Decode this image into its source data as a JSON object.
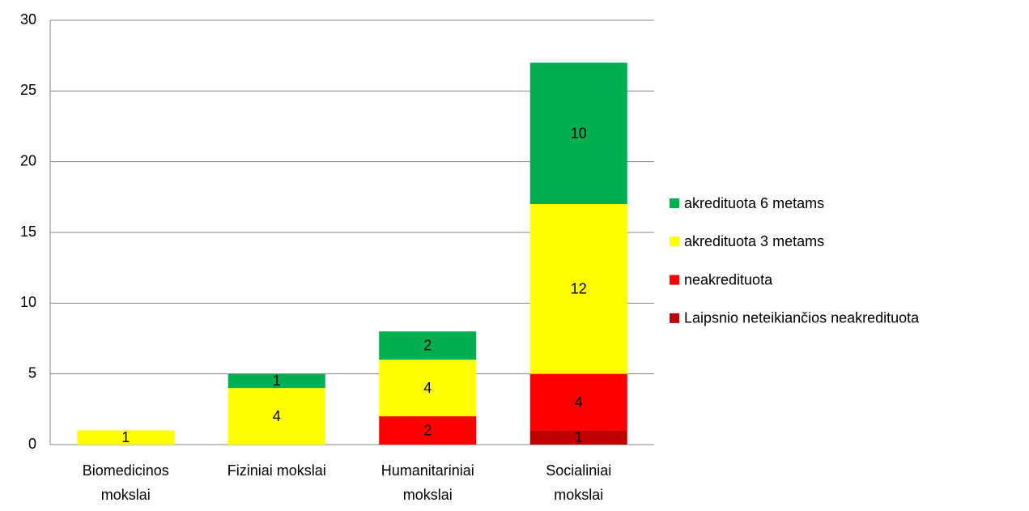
{
  "chart_data": {
    "type": "stacked_bar",
    "categories": [
      "Biomedicinos mokslai",
      "Fiziniai mokslai",
      "Humanitariniai mokslai",
      "Socialiniai mokslai"
    ],
    "series": [
      {
        "name": "Laipsnio neteikiančios neakredituota",
        "color": "#c00000",
        "values": [
          null,
          null,
          null,
          1
        ]
      },
      {
        "name": "neakredituota",
        "color": "#ff0000",
        "values": [
          null,
          null,
          2,
          4
        ]
      },
      {
        "name": "akredituota 3 metams",
        "color": "#ffff00",
        "values": [
          1,
          4,
          4,
          12
        ]
      },
      {
        "name": "akredituota 6 metams",
        "color": "#00b050",
        "values": [
          null,
          1,
          2,
          10
        ]
      }
    ],
    "ylim": [
      0,
      30
    ],
    "yticks": [
      0,
      5,
      10,
      15,
      20,
      25,
      30
    ],
    "grid": true,
    "legend": "right"
  }
}
